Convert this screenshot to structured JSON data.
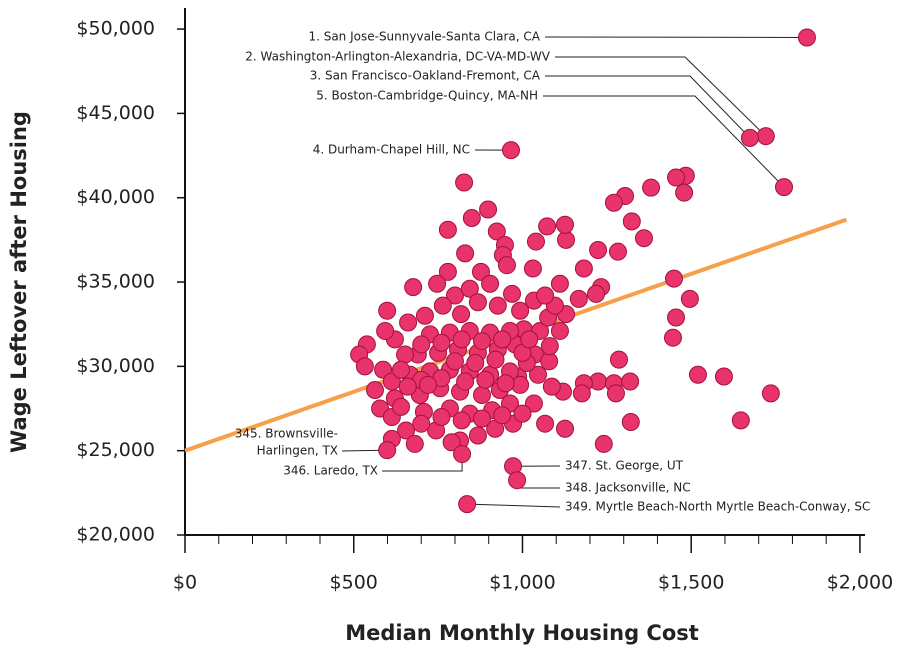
{
  "chart_data": {
    "type": "scatter",
    "xlabel": "Median Monthly Housing Cost",
    "ylabel": "Wage Leftover after Housing",
    "xlim": [
      0,
      2015
    ],
    "ylim": [
      20000,
      51250
    ],
    "xticks": [
      {
        "value": 0,
        "label": "$0"
      },
      {
        "value": 500,
        "label": "$500"
      },
      {
        "value": 1000,
        "label": "$1,000"
      },
      {
        "value": 1500,
        "label": "$1,500"
      },
      {
        "value": 2000,
        "label": "$2,000"
      }
    ],
    "xminorticks": [
      100,
      200,
      300,
      400,
      600,
      700,
      800,
      900,
      1100,
      1200,
      1300,
      1400,
      1600,
      1700,
      1800,
      1900
    ],
    "yticks": [
      {
        "value": 20000,
        "label": "$20,000"
      },
      {
        "value": 25000,
        "label": "$25,000"
      },
      {
        "value": 30000,
        "label": "$30,000"
      },
      {
        "value": 35000,
        "label": "$35,000"
      },
      {
        "value": 40000,
        "label": "$40,000"
      },
      {
        "value": 45000,
        "label": "$45,000"
      },
      {
        "value": 50000,
        "label": "$50,000"
      }
    ],
    "color": "#e8336b",
    "edgecolor": "#a3123f",
    "trendline": {
      "color": "#f7a04a",
      "x": [
        0,
        1960
      ],
      "y": [
        25000,
        38700
      ]
    },
    "x": [
      1484,
      1455,
      1479,
      1381,
      1304,
      1271,
      1324,
      1360,
      1283,
      1224,
      1182,
      1129,
      1073,
      1040,
      1233,
      1218,
      1167,
      1449,
      1455,
      1496,
      1446,
      1520,
      1597,
      1647,
      1736,
      1286,
      1224,
      1271,
      1319,
      1277,
      1182,
      1176,
      1321,
      1241,
      1126,
      1120,
      1034,
      1037,
      1129,
      1079,
      1004,
      987,
      827,
      779,
      898,
      850,
      924,
      830,
      948,
      942,
      779,
      877,
      954,
      1031,
      599,
      676,
      747,
      800,
      844,
      904,
      969,
      993,
      927,
      868,
      818,
      764,
      711,
      661,
      622,
      593,
      539,
      516,
      533,
      587,
      613,
      563,
      622,
      578,
      613,
      655,
      613,
      681,
      744,
      815,
      868,
      919,
      972,
      1067,
      1034,
      1087,
      708,
      785,
      844,
      910,
      963,
      696,
      756,
      815,
      880,
      933,
      993,
      1046,
      667,
      726,
      785,
      844,
      904,
      963,
      1013,
      1081,
      1111,
      690,
      750,
      809,
      868,
      927,
      978,
      652,
      726,
      785,
      844,
      904,
      963,
      1052,
      1076,
      1096,
      1067,
      1111,
      1126,
      640,
      700,
      760,
      830,
      890,
      950,
      660,
      720,
      800,
      860,
      920,
      700,
      760,
      820,
      880,
      940,
      1000,
      1020,
      640,
      700,
      760,
      820,
      880,
      940,
      1000,
      790
    ],
    "y": [
      41300,
      41200,
      40300,
      40600,
      40100,
      39700,
      38600,
      37600,
      36800,
      36900,
      35800,
      37500,
      38300,
      37400,
      34700,
      34300,
      34000,
      35200,
      32900,
      34000,
      31700,
      29500,
      29400,
      26800,
      28400,
      30400,
      29100,
      29000,
      29100,
      28400,
      29000,
      28400,
      26700,
      25400,
      26300,
      28500,
      33900,
      30700,
      33100,
      30300,
      32200,
      29400,
      40900,
      38100,
      39300,
      38800,
      38000,
      36700,
      37200,
      36600,
      35600,
      35600,
      36000,
      35800,
      33300,
      34700,
      34900,
      34200,
      34600,
      34900,
      34300,
      33300,
      33600,
      33800,
      33100,
      33600,
      33000,
      32600,
      31600,
      32100,
      31300,
      30700,
      30000,
      29800,
      29100,
      28600,
      28100,
      27500,
      27000,
      26200,
      25700,
      25400,
      26200,
      25600,
      25900,
      26300,
      26600,
      26600,
      27800,
      28800,
      27300,
      27500,
      27200,
      27400,
      27800,
      28300,
      28700,
      28500,
      28300,
      28600,
      28900,
      29500,
      29500,
      29700,
      29800,
      29700,
      29500,
      29700,
      30200,
      31200,
      32100,
      30700,
      30800,
      31000,
      30800,
      31000,
      31300,
      30700,
      31900,
      32000,
      32100,
      32000,
      32100,
      32100,
      32900,
      33600,
      34200,
      34900,
      38400,
      29800,
      29200,
      29300,
      29100,
      29200,
      29000,
      28800,
      28900,
      30300,
      30200,
      30400,
      31300,
      31400,
      31600,
      31500,
      31600,
      30800,
      31600,
      27600,
      26600,
      27000,
      26800,
      26900,
      27100,
      27200,
      25500
    ],
    "annotations": [
      {
        "text": "1. San Jose-Sunnyvale-Santa Clara, CA",
        "x": 1843,
        "y": 49500
      },
      {
        "text": "2. Washington-Arlington-Alexandria, DC-VA-MD-WV",
        "x": 1721,
        "y": 43650
      },
      {
        "text": "3. San Francisco-Oakland-Fremont, CA",
        "x": 1674,
        "y": 43550
      },
      {
        "text": "5. Boston-Cambridge-Quincy, MA-NH",
        "x": 1775,
        "y": 40630
      },
      {
        "text": "4. Durham-Chapel Hill, NC",
        "x": 966,
        "y": 42820
      },
      {
        "text": [
          "345. Brownsville-",
          "Harlingen, TX"
        ],
        "x": 599,
        "y": 25030
      },
      {
        "text": "346. Laredo, TX",
        "x": 821,
        "y": 24800
      },
      {
        "text": "347. St. George, UT",
        "x": 972,
        "y": 24080
      },
      {
        "text": "348. Jacksonville, NC",
        "x": 984,
        "y": 23250
      },
      {
        "text": "349. Myrtle Beach-North Myrtle Beach-Conway, SC",
        "x": 836,
        "y": 21830
      }
    ]
  }
}
